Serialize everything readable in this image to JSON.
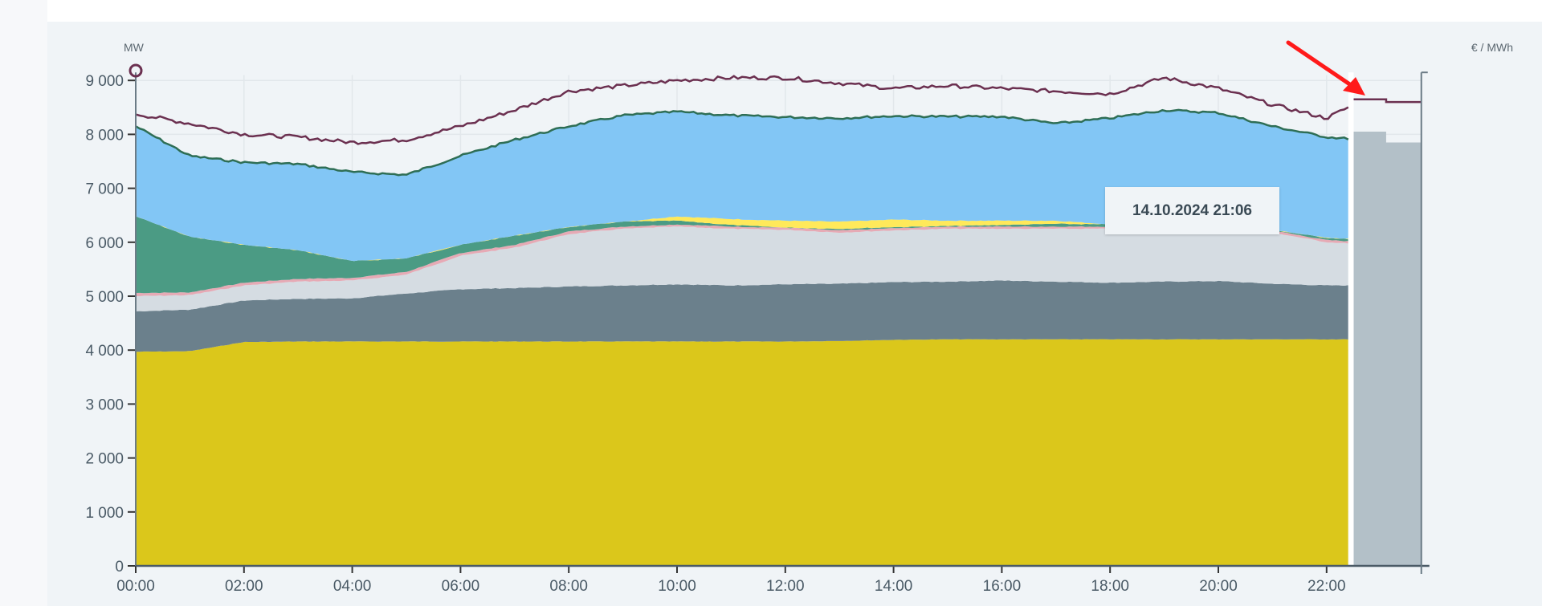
{
  "chart_data": {
    "type": "area",
    "stacked": true,
    "ylabel_left": "MW",
    "ylabel_right": "€ / MWh",
    "ylim": [
      0,
      9000
    ],
    "yticks": [
      "0",
      "1 000",
      "2 000",
      "3 000",
      "4 000",
      "5 000",
      "6 000",
      "7 000",
      "8 000",
      "9 000"
    ],
    "xticks": [
      "00:00",
      "02:00",
      "04:00",
      "06:00",
      "08:00",
      "10:00",
      "12:00",
      "14:00",
      "16:00",
      "18:00",
      "20:00",
      "22:00"
    ],
    "grid": true,
    "x_hours": [
      0,
      1,
      2,
      3,
      4,
      5,
      6,
      7,
      8,
      9,
      10,
      11,
      12,
      13,
      14,
      15,
      16,
      17,
      18,
      19,
      20,
      21,
      22,
      22.4
    ],
    "series_cumulative_tops": [
      {
        "color": "#dbc71b",
        "values": [
          3970,
          3980,
          4150,
          4160,
          4160,
          4160,
          4160,
          4160,
          4160,
          4160,
          4160,
          4160,
          4160,
          4170,
          4190,
          4200,
          4200,
          4200,
          4200,
          4200,
          4200,
          4200,
          4200,
          4200
        ]
      },
      {
        "color": "#6b808c",
        "values": [
          4720,
          4750,
          4920,
          4950,
          4960,
          5050,
          5130,
          5150,
          5180,
          5200,
          5220,
          5200,
          5220,
          5230,
          5260,
          5270,
          5290,
          5270,
          5250,
          5270,
          5280,
          5230,
          5200,
          5200
        ]
      },
      {
        "color": "#d5dce2",
        "values": [
          5000,
          5020,
          5200,
          5270,
          5290,
          5400,
          5750,
          5900,
          6150,
          6250,
          6290,
          6250,
          6230,
          6180,
          6220,
          6250,
          6250,
          6250,
          6250,
          6270,
          6250,
          6180,
          6000,
          5980
        ]
      },
      {
        "color": "#e6aab5",
        "values": [
          5060,
          5070,
          5250,
          5320,
          5340,
          5450,
          5800,
          5950,
          6200,
          6290,
          6330,
          6290,
          6270,
          6220,
          6260,
          6290,
          6290,
          6290,
          6290,
          6310,
          6290,
          6220,
          6040,
          6020
        ]
      },
      {
        "color": "#4b9b84",
        "values": [
          6480,
          6100,
          5950,
          5850,
          5650,
          5700,
          5950,
          6120,
          6280,
          6380,
          6400,
          6320,
          6270,
          6250,
          6280,
          6300,
          6320,
          6340,
          6330,
          6350,
          6300,
          6230,
          6080,
          6060
        ]
      },
      {
        "color": "#ffe95a",
        "values": [
          6480,
          6100,
          5950,
          5850,
          5650,
          5700,
          5950,
          6120,
          6280,
          6380,
          6480,
          6430,
          6400,
          6380,
          6420,
          6400,
          6400,
          6400,
          6330,
          6350,
          6300,
          6230,
          6080,
          6060
        ]
      },
      {
        "color": "#82c6f5",
        "line_color": "#2e6e55",
        "values": [
          8150,
          7600,
          7480,
          7450,
          7300,
          7250,
          7600,
          7900,
          8150,
          8350,
          8420,
          8350,
          8320,
          8300,
          8340,
          8330,
          8330,
          8200,
          8300,
          8450,
          8400,
          8150,
          7950,
          7920
        ]
      }
    ],
    "price_line": {
      "color": "#6b3050",
      "values": [
        8380,
        8200,
        8000,
        7950,
        7850,
        7900,
        8150,
        8450,
        8800,
        8900,
        9000,
        9050,
        9050,
        8950,
        8850,
        8900,
        8850,
        8800,
        8750,
        9050,
        8850,
        8550,
        8300,
        8500
      ]
    },
    "forecast": {
      "color": "#b3c0c8",
      "x_hours": [
        22.5,
        23.1,
        23.1,
        23.75
      ],
      "values": [
        8050,
        8050,
        7850,
        7850
      ],
      "price_values": [
        8650,
        8650,
        8600,
        8600
      ]
    },
    "tooltip": "14.10.2024 21:06",
    "annotation": {
      "type": "arrow",
      "color": "#ff1a1a"
    }
  }
}
